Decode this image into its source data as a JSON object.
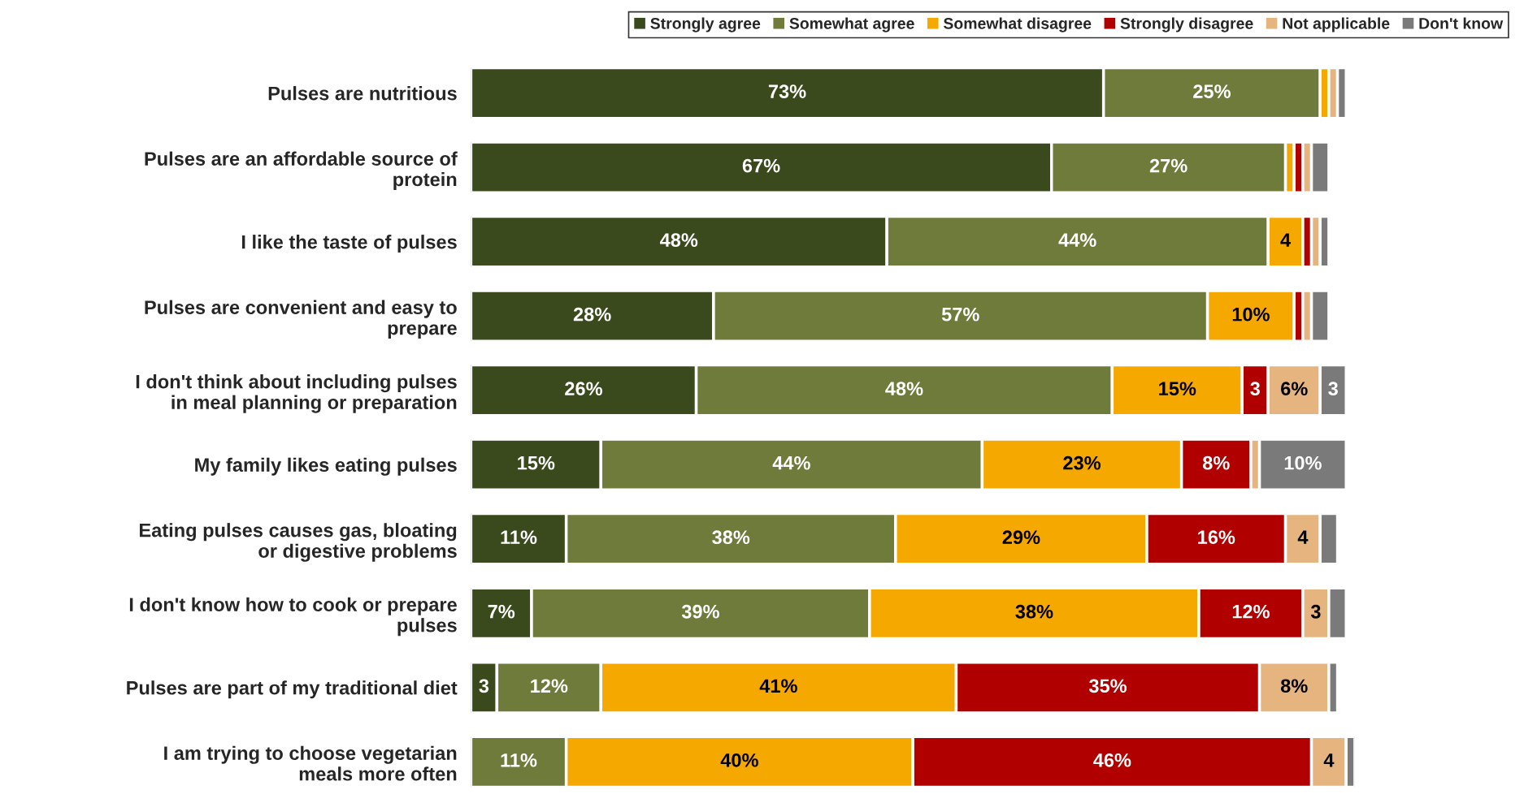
{
  "chart_data": {
    "type": "bar",
    "orientation": "horizontal",
    "stacked": true,
    "legend": "top right",
    "categories": [
      "Pulses are nutritious",
      "Pulses are an affordable source of\nprotein",
      "I like the taste of pulses",
      "Pulses are convenient and easy to\nprepare",
      "I don't think about including pulses\nin meal planning or preparation",
      "My family likes eating pulses",
      "Eating pulses causes gas, bloating\nor digestive problems",
      "I don't know how to cook or prepare\npulses",
      "Pulses are part of my traditional diet",
      "I am trying to choose vegetarian\nmeals more often"
    ],
    "series": [
      {
        "name": "Strongly agree",
        "color": "#3b4a1c",
        "values": [
          73,
          67,
          48,
          28,
          26,
          15,
          11,
          7,
          3,
          0
        ],
        "value_labels": [
          "73%",
          "67%",
          "48%",
          "28%",
          "26%",
          "15%",
          "11%",
          "7%",
          "3",
          null
        ]
      },
      {
        "name": "Somewhat agree",
        "color": "#6e7b3b",
        "values": [
          25,
          27,
          44,
          57,
          48,
          44,
          38,
          39,
          12,
          11
        ],
        "value_labels": [
          "25%",
          "27%",
          "44%",
          "57%",
          "48%",
          "44%",
          "38%",
          "39%",
          "12%",
          "11%"
        ]
      },
      {
        "name": "Somewhat disagree",
        "color": "#f5a800",
        "values": [
          1,
          1,
          4,
          10,
          15,
          23,
          29,
          38,
          41,
          40
        ],
        "value_labels": [
          null,
          null,
          "4",
          "10%",
          "15%",
          "23%",
          "29%",
          "38%",
          "41%",
          "40%"
        ]
      },
      {
        "name": "Strongly disagree",
        "color": "#b00000",
        "values": [
          0,
          1,
          1,
          1,
          3,
          8,
          16,
          12,
          35,
          46
        ],
        "value_labels": [
          null,
          null,
          null,
          null,
          "3",
          "8%",
          "16%",
          "12%",
          "35%",
          "46%"
        ]
      },
      {
        "name": "Not applicable",
        "color": "#e6b47f",
        "values": [
          1,
          1,
          1,
          1,
          6,
          1,
          4,
          3,
          8,
          4
        ],
        "value_labels": [
          null,
          null,
          null,
          null,
          "6%",
          null,
          "4",
          "3",
          "8%",
          "4"
        ]
      },
      {
        "name": "Don't know",
        "color": "#7a7a7a",
        "values": [
          1,
          2,
          1,
          2,
          3,
          10,
          2,
          2,
          1,
          1
        ],
        "value_labels": [
          null,
          null,
          null,
          null,
          "3",
          "10%",
          null,
          null,
          null,
          null
        ]
      }
    ]
  }
}
